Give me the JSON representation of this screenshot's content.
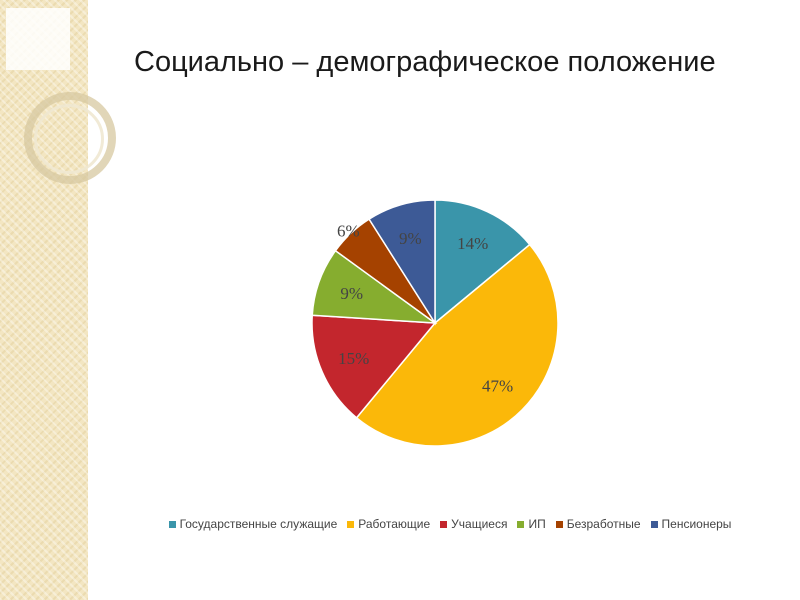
{
  "slide": {
    "title": "Социально – демографическое положение"
  },
  "chart_data": {
    "type": "pie",
    "title": "",
    "categories": [
      "Государственные служащие",
      "Работающие",
      "Учащиеся",
      "ИП",
      "Безработные",
      "Пенсионеры"
    ],
    "values": [
      14,
      47,
      15,
      9,
      6,
      9
    ],
    "labels": [
      "14%",
      "47%",
      "15%",
      "9%",
      "6%",
      "9%"
    ],
    "colors": [
      "#3a95aa",
      "#fbb809",
      "#c3262d",
      "#86ad2f",
      "#a54200",
      "#3d5a96"
    ],
    "start_angle_deg": 0,
    "direction": "clockwise",
    "legend_position": "bottom"
  }
}
